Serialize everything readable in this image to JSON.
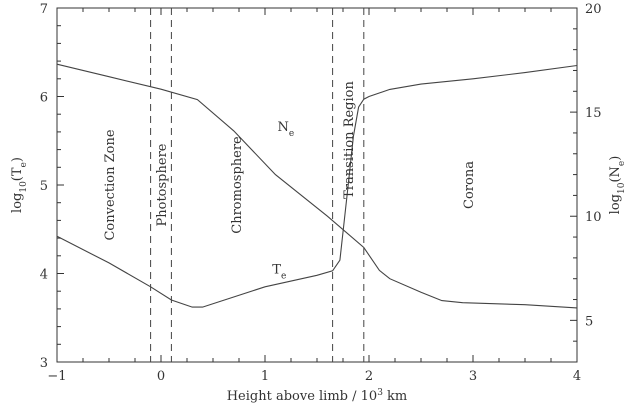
{
  "chart_data": {
    "type": "line",
    "xlabel": "Height above limb / 10",
    "xlabel_sup": "3",
    "xlabel_unit": " km",
    "ylabel_left": "log",
    "ylabel_left_sub": "10",
    "ylabel_left_arg": "(T",
    "ylabel_left_arg_sub": "e",
    "ylabel_left_close": ")",
    "ylabel_right": "log",
    "ylabel_right_sub": "10",
    "ylabel_right_arg": "(N",
    "ylabel_right_arg_sub": "e",
    "ylabel_right_close": ")",
    "xlim": [
      -1,
      4
    ],
    "ylim_left": [
      3,
      7
    ],
    "ylim_right": [
      3,
      20
    ],
    "x_ticks": [
      -1,
      0,
      1,
      2,
      3,
      4
    ],
    "y_left_ticks": [
      3,
      4,
      5,
      6,
      7
    ],
    "y_right_ticks": [
      5,
      10,
      15,
      20
    ],
    "boundaries": [
      -0.1,
      0.1,
      1.65,
      1.95
    ],
    "regions": [
      {
        "name": "Convection Zone",
        "x": -0.5
      },
      {
        "name": "Photosphere",
        "x": 0.0
      },
      {
        "name": "Chromosphere",
        "x": 0.72
      },
      {
        "name": "Transition Region",
        "x": 1.8
      },
      {
        "name": "Corona",
        "x": 2.95
      }
    ],
    "series": [
      {
        "name": "T",
        "name_sub": "e",
        "axis": "left",
        "x": [
          -1,
          -0.5,
          -0.1,
          0.1,
          0.3,
          0.4,
          1.0,
          1.5,
          1.65,
          1.72,
          1.8,
          1.85,
          1.9,
          1.95,
          2.0,
          2.2,
          2.5,
          3.0,
          3.5,
          4.0
        ],
        "y": [
          4.42,
          4.12,
          3.85,
          3.7,
          3.62,
          3.62,
          3.85,
          3.98,
          4.03,
          4.15,
          5.0,
          5.55,
          5.88,
          5.97,
          6.0,
          6.08,
          6.14,
          6.2,
          6.27,
          6.35
        ]
      },
      {
        "name": "N",
        "name_sub": "e",
        "axis": "right",
        "x": [
          -1,
          -0.5,
          0.0,
          0.35,
          0.7,
          1.1,
          1.6,
          1.95,
          2.1,
          2.2,
          2.5,
          2.7,
          2.9,
          3.5,
          4.0
        ],
        "y": [
          17.3,
          16.7,
          16.1,
          15.6,
          14.1,
          12.0,
          10.0,
          8.5,
          7.4,
          7.0,
          6.35,
          5.95,
          5.85,
          5.75,
          5.6
        ]
      }
    ],
    "curve_labels": [
      {
        "series": 1,
        "x": 1.12,
        "y": 14.1
      },
      {
        "series": 0,
        "x": 1.07,
        "y": 4.0
      }
    ]
  }
}
